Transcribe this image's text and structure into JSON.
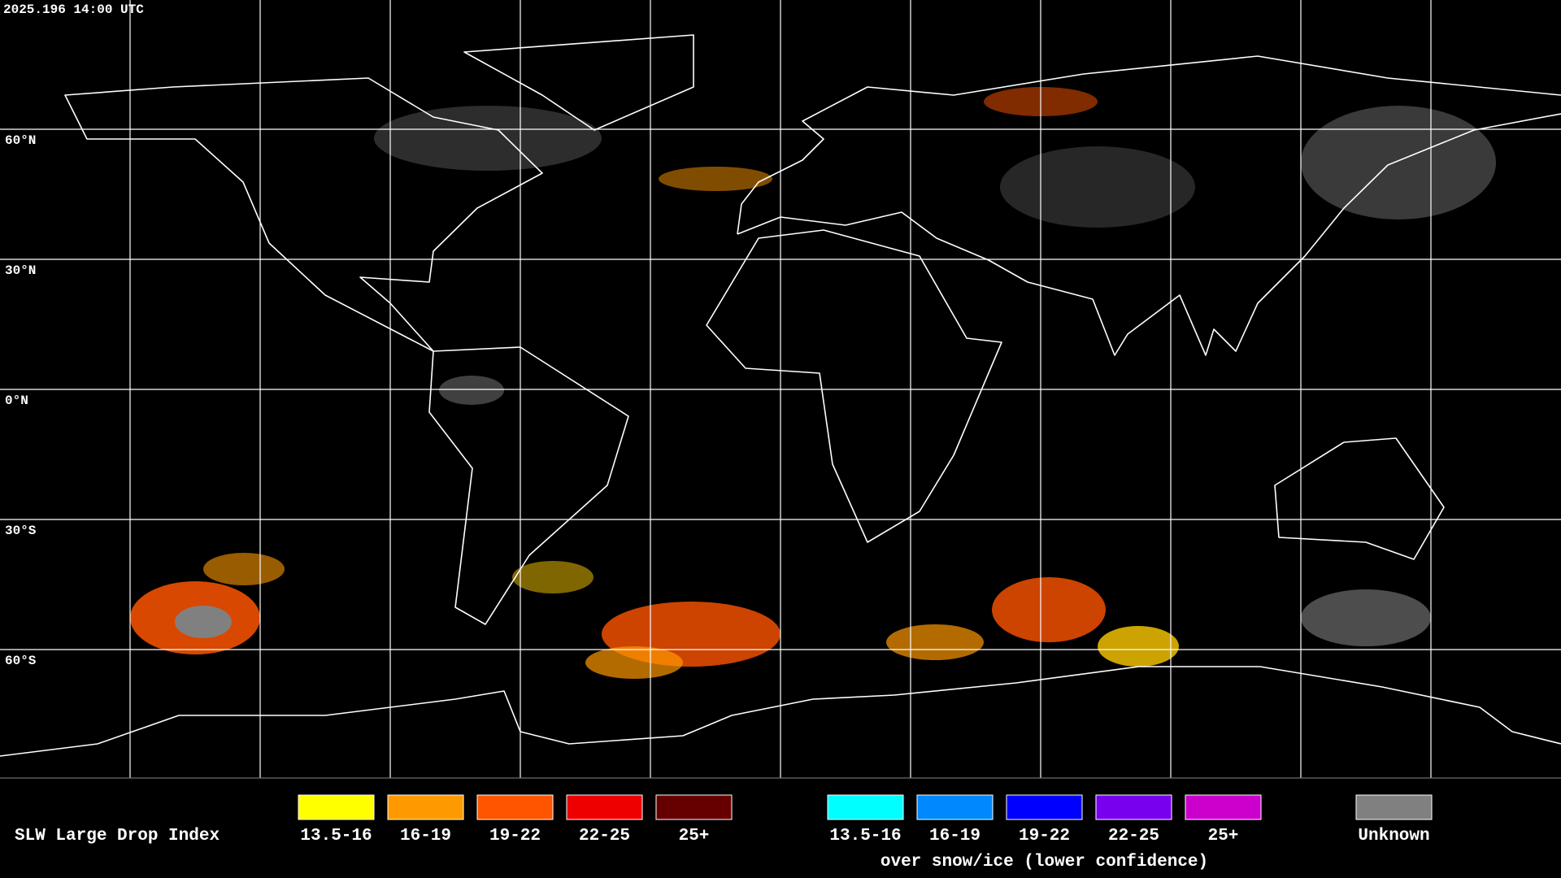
{
  "header": {
    "timestamp": "2025.196 14:00 UTC"
  },
  "map": {
    "lat_labels": [
      "60°N",
      "30°N",
      "0°N",
      "30°S",
      "60°S"
    ]
  },
  "legend": {
    "title": "SLW Large Drop Index",
    "groups": [
      {
        "items": [
          {
            "label": "13.5-16",
            "color": "#ffff00"
          },
          {
            "label": "16-19",
            "color": "#ff9900"
          },
          {
            "label": "19-22",
            "color": "#ff5500"
          },
          {
            "label": "22-25",
            "color": "#ee0000"
          },
          {
            "label": "25+",
            "color": "#660000"
          }
        ]
      },
      {
        "items": [
          {
            "label": "13.5-16",
            "color": "#00ffff"
          },
          {
            "label": "16-19",
            "color": "#0088ff"
          },
          {
            "label": "19-22",
            "color": "#0000ff"
          },
          {
            "label": "22-25",
            "color": "#7700ee"
          },
          {
            "label": "25+",
            "color": "#cc00cc"
          }
        ],
        "caption": "over snow/ice (lower confidence)"
      }
    ],
    "unknown": {
      "label": "Unknown",
      "color": "#808080"
    }
  }
}
